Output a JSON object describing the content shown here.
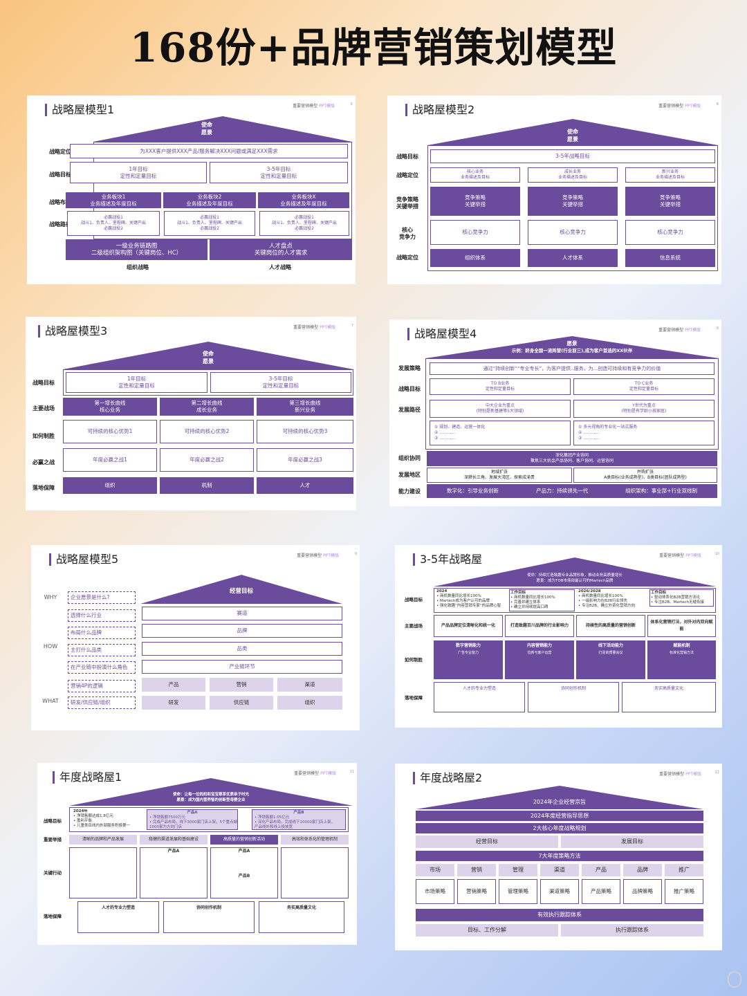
{
  "title": "168份+品牌营销策划模型",
  "tag": {
    "a": "重要营销模型",
    "b": "PPT模版"
  },
  "card1": {
    "title": "战略屋模型1",
    "page": "5",
    "roof": [
      "使命",
      "愿景"
    ],
    "labels": [
      "战略定位",
      "战略目标",
      "战略布局",
      "战略路径"
    ],
    "pos": "为XXX客户提供XXX产品/服务解决XXX问题或满足XXX需求",
    "goals": [
      "1年目标\n定性和定量目标",
      "3-5年目标\n定性和定量目标"
    ],
    "biz": [
      "业务板块1\n业务描述及年度目标",
      "业务板块2\n业务描述及年度目标",
      "业务板块X\n业务描述及年度目标"
    ],
    "paths": [
      "必赢战役1\n战斗1、负责人、里程碑、关键产出\n必赢战役2",
      "必赢战役1\n战斗1、负责人、里程碑、关键产出\n必赢战役2",
      "必赢战役1\n战斗1、负责人、里程碑、关键产出\n必赢战役2"
    ],
    "bottom": [
      "一级业务链路图\n二级组织架构图（关键岗位、HC）",
      "人才盘点\n关键岗位的人才需求"
    ],
    "foot": [
      "组织战略",
      "人才战略"
    ]
  },
  "card2": {
    "title": "战略屋模型2",
    "page": "6",
    "roof": [
      "使命",
      "愿景"
    ],
    "labels": [
      "战略目标",
      "战略定位",
      "竞争策略\n关键举措",
      "核心\n竞争力",
      "战略定位"
    ],
    "goal": "3-5年战略目标",
    "biz": [
      "核心业务\n业务描述及目标",
      "成长业务\n业务描述及目标",
      "新兴业务\n业务描述及目标"
    ],
    "strat": [
      "竞争策略\n关键举措",
      "竞争策略\n关键举措",
      "竞争策略\n关键举措"
    ],
    "core": [
      "核心竞争力",
      "核心竞争力",
      "核心竞争力"
    ],
    "bottom": [
      "组织体系",
      "人才体系",
      "信息系统"
    ]
  },
  "card3": {
    "title": "战略屋模型3",
    "page": "7",
    "roof": [
      "使命",
      "愿景"
    ],
    "labels": [
      "战略目标",
      "主要战场",
      "如何制胜",
      "必赢之战",
      "落地保障"
    ],
    "goals": [
      "1年目标\n定性和定量目标",
      "3-5年目标\n定性和定量目标"
    ],
    "fields": [
      "第一增长曲线\n核心业务",
      "第二增长曲线\n成长业务",
      "第三增长曲线\n新兴业务"
    ],
    "wins": [
      "可持续的核心优势1",
      "可持续的核心优势2",
      "可持续的核心优势3"
    ],
    "battles": [
      "年度必赢之战1",
      "年度必赢之战2",
      "年度必赢之战3"
    ],
    "bottom": [
      "组织",
      "机制",
      "人才"
    ]
  },
  "card4": {
    "title": "战略屋模型4",
    "page": "8",
    "roof": [
      "愿景",
      "示例：跻身全国一流阵营(行业前三),成为客户首选的XX伙伴"
    ],
    "labels": [
      "发展策略",
      "战略目标",
      "发展路径",
      "组织协同",
      "发展地区",
      "能力建设"
    ],
    "strategy": "通过“持续创新”“专业专长”，为客户提供..服务，为...创造可持续和有竞争力的价值",
    "goals": [
      "TO B业务\n定性和定量目标",
      "TO C业务\n定性和定量目标"
    ],
    "paths": [
      "中大企业为重点\n(特别是新基建等5大领域)",
      "Y世代为重点\n(特别是有学龄小孩家庭)"
    ],
    "items1": [
      "① 规划、建造、运营一体化",
      "② ............",
      "③ ............"
    ],
    "items2": [
      "① 多元视角的专业化一站式服务",
      "② ............",
      "③ ............"
    ],
    "synergy": "深化集团产业协同\n聚焦三大机会产品协同、客户协同、运营协同",
    "regions": [
      "地域扩张\n深耕长三角、发展大湾区、探索成渝贵",
      "并购扩张\nA类目标(业务成熟型)、B类目标(团队成熟型)"
    ],
    "ability": [
      "数字化：引导业务创新",
      "产品力：持续领先一代",
      "组织架构：事业部+行业双线制"
    ]
  },
  "card5": {
    "title": "战略屋模型5",
    "page": "9",
    "roof": "经营目标",
    "side": [
      "WHY",
      "HOW",
      "WHAT"
    ],
    "questions": [
      "企业愿景是什么?",
      "选择什么行业",
      "布局什么品牌",
      "主打什么品类",
      "在产业链中扮演什么角色",
      "营销4P的逻辑",
      "研发/供应链/组织"
    ],
    "rows": [
      "赛道",
      "品牌",
      "品类",
      "产业链环节"
    ],
    "p4": [
      "产品",
      "营销",
      "渠道"
    ],
    "supply": [
      "研发",
      "供应链",
      "组织"
    ]
  },
  "card6": {
    "title": "3-5年战略屋",
    "page": "10",
    "roof": [
      "使命：持续打造致趣专业品牌形象，推动业务高质量增长",
      "愿景：成为TOB市场部最认可的Martech品牌"
    ],
    "labels": [
      "战略目标",
      "主要战场",
      "如何制胜",
      "落地保障"
    ],
    "goalA": {
      "head": "2024",
      "lines": [
        "• 商机数量同比增长100%",
        "• Martech成为客户认可的品牌",
        "• 强化致趣“内容营销专家”的品牌心智"
      ]
    },
    "goalA2": {
      "head": "工作目标",
      "lines": [
        "• 商机数量同比增长100%",
        "• 完善并建立体系",
        "• 确立并持续提高口碑"
      ]
    },
    "goalB": {
      "head": "2026/2028",
      "lines": [
        "• 商机数量同比增长100%",
        "• 一级影响力在B2B行业领先",
        "• 专注B2B、确立外资化营销方向"
      ]
    },
    "goalB2": {
      "head": "工作目标",
      "lines": [
        "• 驱动体系化B2B营销方法论",
        "• 专注B2B、Martech无缝衔接"
      ]
    },
    "fields": [
      "产品品牌定位清晰化和统一化",
      "打造致趣百川品牌的行业影响力",
      "持续性的高质量的营销创新",
      "体系化营销打法，对外对内双向赋能"
    ],
    "how": [
      "数字营销能力",
      "内容营销能力",
      "线下活动能力",
      "赋能机制"
    ],
    "how_lines": [
      "广告专业能力",
      "拉新与客户运营",
      "打造高质量会议",
      "标准化营销方法"
    ],
    "support": [
      "人才的专业力塑造",
      "协同创作机制",
      "务实高质量文化"
    ]
  },
  "card7": {
    "title": "年度战略屋1",
    "page": "11",
    "roof": [
      "使命：让每一位妈妈和宝宝尊享优质亲子时光",
      "愿景：成为国内营养智的创新型母婴企业"
    ],
    "labels": [
      "战略目标",
      "重要举措",
      "关键行动",
      "落地保障"
    ],
    "goal": {
      "head": "2024年",
      "lines": [
        "• 净销售额达成1.8亿元",
        "• 盈利平衡",
        "• 儿童类目线内外部服务积极第一"
      ]
    },
    "prodA": {
      "head": "产品A",
      "lines": [
        "• 净销售额7500万元",
        "• 完成产品布局，线下3000家门店上架，5个重点城市",
        "  1000家为方向门店"
      ]
    },
    "prodB": {
      "head": "产品B",
      "lines": [
        "• 净销售额1.05亿元",
        "• 深化产品布局，完成线下10000家门店上架，",
        "  产品线外和线上投放宽"
      ]
    },
    "key": [
      "清晰的品牌和产品发展",
      "稳健的渠道发展和基础建设",
      "高质量的营销创新活动",
      "高效和体系化的管理机制"
    ],
    "act": [
      "产品A",
      "产品A",
      "产品B"
    ],
    "support": [
      "人才的专业力塑造",
      "协同创作机制",
      "务实高质量文化"
    ]
  },
  "card8": {
    "title": "年度战略屋2",
    "page": "12",
    "roof": "2024年企业经营宗旨",
    "rows": [
      "2024年度经营指导思想",
      "2大核心年度战略规划"
    ],
    "targets": [
      "经营目标",
      "发展目标"
    ],
    "method": "7大年度策略方法",
    "cats": [
      "市场",
      "营销",
      "管理",
      "渠道",
      "产品",
      "品牌",
      "推广"
    ],
    "strats": [
      "市场策略",
      "营销策略",
      "管理策略",
      "渠道策略",
      "产品策略",
      "品牌策略",
      "推广策略"
    ],
    "exec": "有效执行跟踪体系",
    "foot": [
      "目标、工作分解",
      "执行跟踪体系"
    ]
  }
}
